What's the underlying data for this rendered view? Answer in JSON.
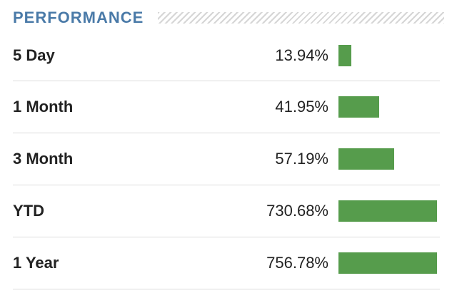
{
  "panel": {
    "title": "PERFORMANCE",
    "bar_color": "#569c4c",
    "title_color": "#4a7aa8"
  },
  "rows": [
    {
      "label": "5 Day",
      "value_text": "13.94%",
      "bar_fraction": 0.13
    },
    {
      "label": "1 Month",
      "value_text": "41.95%",
      "bar_fraction": 0.41
    },
    {
      "label": "3 Month",
      "value_text": "57.19%",
      "bar_fraction": 0.565
    },
    {
      "label": "YTD",
      "value_text": "730.68%",
      "bar_fraction": 1.0
    },
    {
      "label": "1 Year",
      "value_text": "756.78%",
      "bar_fraction": 1.0
    }
  ]
}
